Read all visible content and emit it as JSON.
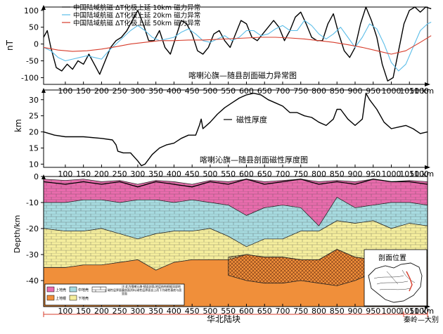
{
  "chart_data": [
    {
      "type": "line",
      "title": "喀喇沁旗—随县剖面磁力异常图",
      "ylabel": "nT",
      "xunit": "km",
      "xlim": [
        40,
        1100
      ],
      "ylim": [
        -120,
        110
      ],
      "xticks": [
        100,
        150,
        200,
        250,
        300,
        350,
        400,
        450,
        500,
        550,
        600,
        650,
        700,
        750,
        800,
        850,
        900,
        950,
        1000,
        1050,
        1100
      ],
      "yticks": [
        100,
        50,
        0,
        -50,
        -100
      ],
      "legend_position": "top-left",
      "series": [
        {
          "name": "中国陆域航磁 ΔT化极上延 10km 磁力异常",
          "color": "#000000",
          "x": [
            40,
            50,
            60,
            75,
            90,
            105,
            120,
            135,
            150,
            165,
            180,
            195,
            210,
            225,
            240,
            255,
            270,
            285,
            300,
            315,
            330,
            345,
            360,
            375,
            390,
            405,
            420,
            435,
            450,
            465,
            480,
            495,
            510,
            525,
            540,
            555,
            570,
            585,
            600,
            615,
            630,
            645,
            660,
            675,
            690,
            705,
            720,
            735,
            750,
            765,
            780,
            795,
            810,
            825,
            840,
            855,
            870,
            885,
            900,
            915,
            930,
            945,
            960,
            975,
            990,
            1005,
            1020,
            1035,
            1050,
            1065,
            1080,
            1095,
            1110
          ],
          "values": [
            20,
            40,
            -10,
            -70,
            -80,
            -60,
            -75,
            -50,
            -60,
            -30,
            -60,
            -90,
            -50,
            -10,
            10,
            20,
            40,
            70,
            100,
            60,
            10,
            10,
            40,
            -10,
            -30,
            20,
            70,
            60,
            30,
            -20,
            -30,
            -10,
            30,
            40,
            10,
            -10,
            30,
            70,
            60,
            20,
            10,
            30,
            50,
            70,
            50,
            10,
            40,
            80,
            95,
            60,
            20,
            10,
            10,
            60,
            90,
            30,
            -20,
            -40,
            -10,
            60,
            110,
            70,
            20,
            -60,
            -110,
            -100,
            -20,
            60,
            100,
            110,
            95,
            110,
            105
          ]
        },
        {
          "name": "中国陆域航磁 ΔT化极上延 20km 磁力异常",
          "color": "#5bbde8",
          "x": [
            40,
            60,
            80,
            100,
            120,
            140,
            160,
            180,
            200,
            220,
            240,
            260,
            280,
            300,
            320,
            340,
            360,
            380,
            400,
            420,
            440,
            460,
            480,
            500,
            520,
            540,
            560,
            580,
            600,
            620,
            640,
            660,
            680,
            700,
            720,
            740,
            760,
            780,
            800,
            820,
            840,
            860,
            880,
            900,
            920,
            940,
            960,
            980,
            1000,
            1020,
            1040,
            1060,
            1080,
            1100,
            1110
          ],
          "values": [
            -10,
            -20,
            -40,
            -50,
            -45,
            -40,
            -35,
            -40,
            -45,
            -20,
            0,
            20,
            40,
            55,
            40,
            20,
            10,
            15,
            20,
            35,
            45,
            30,
            10,
            5,
            15,
            25,
            10,
            20,
            40,
            40,
            25,
            30,
            45,
            55,
            40,
            40,
            70,
            55,
            30,
            15,
            30,
            50,
            20,
            -10,
            20,
            60,
            45,
            0,
            -55,
            -80,
            -60,
            -10,
            40,
            60,
            65
          ]
        },
        {
          "name": "中国陆域航磁 ΔT化极上延 50km 磁力异常",
          "color": "#d73c2b",
          "x": [
            40,
            80,
            120,
            160,
            200,
            240,
            280,
            320,
            360,
            400,
            440,
            480,
            520,
            560,
            600,
            640,
            680,
            720,
            760,
            800,
            840,
            880,
            920,
            960,
            1000,
            1040,
            1080,
            1110
          ],
          "values": [
            -10,
            -18,
            -22,
            -20,
            -15,
            -8,
            0,
            5,
            10,
            10,
            12,
            12,
            14,
            16,
            18,
            20,
            20,
            18,
            15,
            10,
            5,
            -2,
            -10,
            -20,
            -30,
            -20,
            5,
            25
          ]
        }
      ]
    },
    {
      "type": "line",
      "title": "喀喇沁旗—随县剖面磁性厚度图",
      "ylabel": "km",
      "xunit": "km",
      "xlim": [
        40,
        1100
      ],
      "ylim": [
        9,
        33
      ],
      "xticks": [
        100,
        150,
        200,
        250,
        300,
        350,
        400,
        450,
        500,
        550,
        600,
        650,
        700,
        750,
        800,
        850,
        900,
        950,
        1000,
        1050,
        1100
      ],
      "yticks": [
        30,
        25,
        20,
        15,
        10
      ],
      "legend_position": "top-center",
      "series": [
        {
          "name": "磁性厚度",
          "color": "#000000",
          "x": [
            40,
            70,
            100,
            150,
            200,
            230,
            240,
            245,
            260,
            280,
            300,
            310,
            320,
            340,
            360,
            380,
            400,
            420,
            440,
            460,
            470,
            475,
            480,
            500,
            520,
            540,
            560,
            580,
            600,
            620,
            640,
            660,
            680,
            700,
            720,
            740,
            760,
            780,
            800,
            820,
            840,
            850,
            860,
            880,
            900,
            920,
            930,
            940,
            960,
            980,
            1000,
            1020,
            1040,
            1060,
            1080,
            1100
          ],
          "values": [
            20,
            19,
            18.5,
            18.5,
            18,
            17.5,
            16,
            14,
            13.5,
            13.5,
            11,
            9.5,
            10,
            13,
            15,
            16,
            16.5,
            18,
            19,
            19,
            22,
            24,
            21,
            23,
            25.5,
            27.5,
            29,
            30.5,
            31.5,
            32,
            31.5,
            30,
            29,
            28,
            26,
            26,
            25,
            24.5,
            23,
            22,
            24,
            27,
            27,
            24,
            22,
            24,
            32,
            30,
            27,
            23,
            21,
            21.5,
            22,
            21,
            19.5,
            20
          ]
        }
      ]
    },
    {
      "type": "area",
      "title": "剖面位置",
      "ylabel": "Depth/km",
      "xunit": "km",
      "xlim": [
        40,
        1100
      ],
      "ylim": [
        -50,
        0
      ],
      "xticks": [
        100,
        150,
        200,
        250,
        300,
        350,
        400,
        450,
        500,
        550,
        600,
        650,
        700,
        750,
        800,
        850,
        900,
        950,
        1000,
        1050,
        1100
      ],
      "yticks": [
        0,
        -10,
        -20,
        -30,
        -40
      ],
      "x": [
        40,
        100,
        150,
        200,
        250,
        300,
        350,
        400,
        450,
        500,
        550,
        600,
        650,
        700,
        750,
        800,
        850,
        900,
        950,
        1000,
        1050,
        1100
      ],
      "layers": [
        {
          "name": "上地壳",
          "color": "#e96cad",
          "top": [
            -1,
            -1.5,
            -1,
            -2,
            -1.5,
            -3,
            -1.5,
            -2,
            -3,
            -1.5,
            -2,
            -1,
            -2,
            -1.5,
            -1,
            -2,
            -1.5,
            -2,
            -1,
            -2,
            -1.5,
            -2
          ],
          "bottom": [
            -10,
            -10,
            -9,
            -9,
            -10,
            -9,
            -9,
            -10,
            -9,
            -10,
            -11,
            -15,
            -12,
            -11,
            -12,
            -19,
            -8,
            -12,
            -11,
            -10,
            -10,
            -11
          ]
        },
        {
          "name": "中地壳",
          "color": "#a7dbe0",
          "top": [
            -10,
            -10,
            -9,
            -9,
            -10,
            -9,
            -9,
            -10,
            -9,
            -10,
            -11,
            -15,
            -12,
            -11,
            -12,
            -19,
            -8,
            -12,
            -11,
            -10,
            -10,
            -11
          ],
          "bottom": [
            -20,
            -21,
            -21,
            -20,
            -22,
            -24,
            -22,
            -21,
            -21,
            -20,
            -23,
            -27,
            -24,
            -24,
            -21,
            -21,
            -17,
            -18,
            -17,
            -20,
            -18,
            -19
          ]
        },
        {
          "name": "下地壳",
          "color": "#f5ee9d",
          "top": [
            -20,
            -21,
            -21,
            -20,
            -22,
            -24,
            -22,
            -21,
            -21,
            -20,
            -23,
            -27,
            -24,
            -24,
            -21,
            -21,
            -17,
            -18,
            -17,
            -20,
            -18,
            -19
          ],
          "bottom": [
            -35,
            -35,
            -34,
            -34,
            -33,
            -32,
            -36,
            -33,
            -32,
            -32,
            -32,
            -30,
            -31,
            -31,
            -32,
            -32,
            -28,
            -31,
            -32,
            -32,
            -31,
            -31
          ]
        },
        {
          "name": "上地幔",
          "color": "#f08f3a",
          "top": [
            -35,
            -35,
            -34,
            -34,
            -33,
            -32,
            -36,
            -33,
            -32,
            -32,
            -32,
            -30,
            -31,
            -31,
            -32,
            -32,
            -28,
            -31,
            -32,
            -32,
            -31,
            -31
          ],
          "bottom": [
            -50,
            -50,
            -50,
            -50,
            -50,
            -50,
            -50,
            -50,
            -50,
            -50,
            -50,
            -50,
            -50,
            -50,
            -50,
            -50,
            -50,
            -50,
            -50,
            -50,
            -50,
            -50
          ]
        }
      ],
      "legend": {
        "items": [
          "上地壳",
          "上地幔",
          "中地壳",
          "下地壳",
          "磁性层界面"
        ],
        "note": "注:此为喀喇沁旗-随县剖面,地层结构根据深部地震剖面资料,磁性层界面自上而下为磁性基底与居里面"
      },
      "blocks": [
        {
          "label": "华北陆块",
          "x_range": [
            40,
            1060
          ]
        },
        {
          "label": "秦岭—大别",
          "x_range": [
            1060,
            1110
          ]
        }
      ]
    }
  ]
}
